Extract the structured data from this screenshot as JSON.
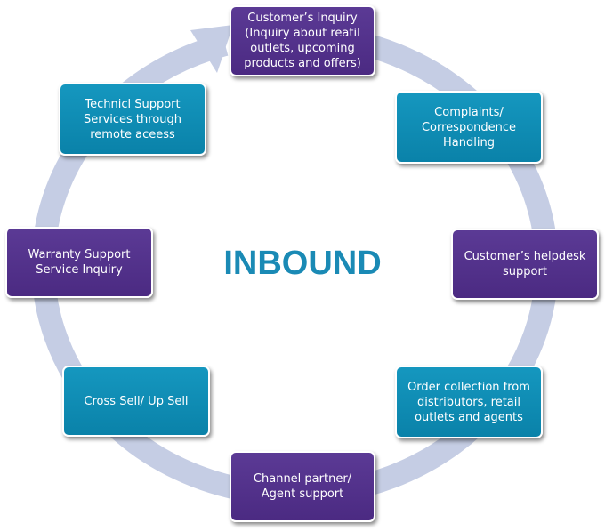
{
  "diagram": {
    "center_label": "INBOUND",
    "colors": {
      "purple": "#4f2d87",
      "teal": "#0d8ab2",
      "ring": "#c5cde4",
      "center_text": "#1a8ab5"
    },
    "nodes": [
      {
        "id": "customer-inquiry",
        "text": "Customer’s Inquiry\n(Inquiry about reatil\noutlets, upcoming\nproducts and offers)",
        "color": "purple"
      },
      {
        "id": "complaints",
        "text": "Complaints/\nCorrespondence\nHandling",
        "color": "teal"
      },
      {
        "id": "helpdesk",
        "text": "Customer’s helpdesk\nsupport",
        "color": "purple"
      },
      {
        "id": "order-collection",
        "text": "Order collection from\ndistributors, retail\noutlets and agents",
        "color": "teal"
      },
      {
        "id": "channel-partner",
        "text": "Channel partner/\nAgent  support",
        "color": "purple"
      },
      {
        "id": "cross-sell",
        "text": "Cross Sell/ Up Sell",
        "color": "teal"
      },
      {
        "id": "warranty",
        "text": "Warranty Support\nService Inquiry",
        "color": "purple"
      },
      {
        "id": "technical-support",
        "text": "Technicl Support\nServices through\nremote aceess",
        "color": "teal"
      }
    ]
  }
}
